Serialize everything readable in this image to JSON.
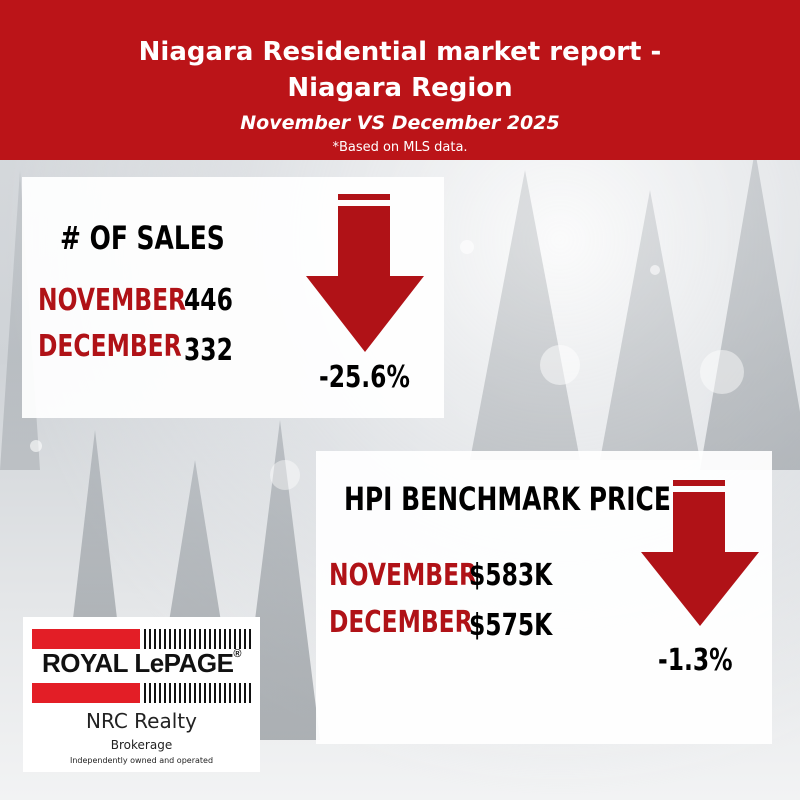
{
  "header": {
    "title_line1": "Niagara Residential market report -",
    "title_line2": "Niagara Region",
    "subtitle": "November VS December 2025",
    "note": "*Based on MLS data."
  },
  "sales_card": {
    "heading": "# OF SALES",
    "rows": [
      {
        "month": "NOVEMBER",
        "value": "446"
      },
      {
        "month": "DECEMBER",
        "value": "332"
      }
    ],
    "change": "-25.6%",
    "arrow_icon": "down-arrow-icon"
  },
  "hpi_card": {
    "heading": "HPI BENCHMARK PRICE",
    "rows": [
      {
        "month": "NOVEMBER",
        "value": "$583K"
      },
      {
        "month": "DECEMBER",
        "value": "$575K"
      }
    ],
    "change": "-1.3%",
    "arrow_icon": "down-arrow-icon"
  },
  "logo": {
    "brand": "ROYAL LePAGE",
    "registered": "®",
    "office": "NRC Realty",
    "type": "Brokerage",
    "tagline": "Independently owned and operated"
  },
  "colors": {
    "brand_red": "#bb1418",
    "month_red": "#b01217",
    "logo_red": "#e31e26"
  }
}
